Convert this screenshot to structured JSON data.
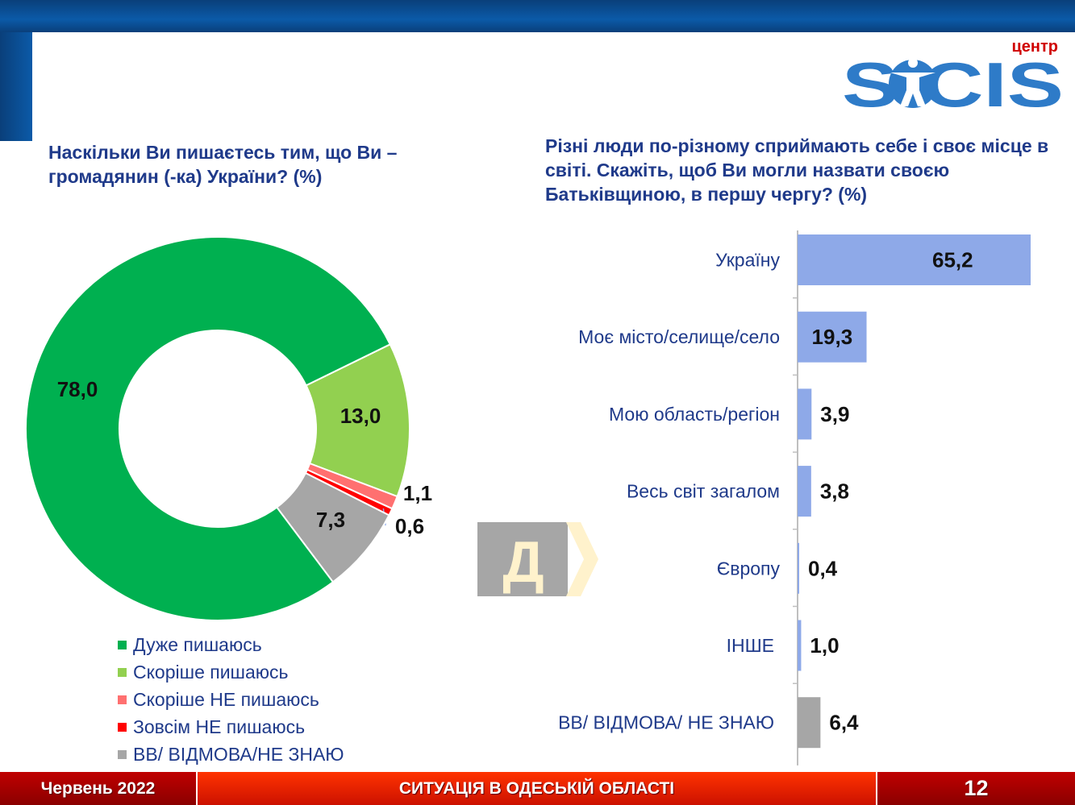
{
  "header": {
    "logo_text": "SOCIS",
    "logo_subtext": "центр"
  },
  "footer": {
    "date": "Червень 2022",
    "title": "СИТУАЦІЯ В ОДЕСЬКІЙ ОБЛАСТІ",
    "page": "12"
  },
  "arrow_label": "Д",
  "colors": {
    "blue_bar": "#8ea9e8",
    "gray_bar": "#a6a6a6",
    "title": "#1f3a8a"
  },
  "chart_data": [
    {
      "type": "pie",
      "subtype": "donut",
      "title": "Наскільки Ви пишаєтесь тим, що Ви – громадянин (-ка) України? (%)",
      "slices": [
        {
          "label": "Скоріше пишаюсь",
          "value": 13.0,
          "display": "13,0",
          "color": "#92d050"
        },
        {
          "label": "Скоріше НЕ пишаюсь",
          "value": 1.1,
          "display": "1,1",
          "color": "#ff7070"
        },
        {
          "label": "Зовсім НЕ пишаюсь",
          "value": 0.6,
          "display": "0,6",
          "color": "#ff0000"
        },
        {
          "label": "ВВ/ ВІДМОВА/НЕ ЗНАЮ",
          "value": 7.3,
          "display": "7,3",
          "color": "#a6a6a6"
        },
        {
          "label": "Дуже пишаюсь",
          "value": 78.0,
          "display": "78,0",
          "color": "#00b050"
        }
      ],
      "legend": [
        "Дуже пишаюсь",
        "Скоріше пишаюсь",
        "Скоріше НЕ пишаюсь",
        "Зовсім НЕ пишаюсь",
        "ВВ/ ВІДМОВА/НЕ ЗНАЮ"
      ],
      "legend_colors": [
        "#00b050",
        "#92d050",
        "#ff7070",
        "#ff0000",
        "#a6a6a6"
      ],
      "legend_placement": "bottom"
    },
    {
      "type": "bar",
      "orientation": "horizontal",
      "title": "Різні люди по-різному сприймають себе і своє місце в світі. Скажіть, щоб Ви могли назвати своєю Батьківщиною, в першу чергу? (%)",
      "categories": [
        "Україну",
        "Моє місто/селище/село",
        "Мою область/регіон",
        "Весь світ загалом",
        "Європу",
        "ІНШЕ",
        "ВВ/ ВІДМОВА/ НЕ ЗНАЮ"
      ],
      "values": [
        65.2,
        19.3,
        3.9,
        3.8,
        0.4,
        1.0,
        6.4
      ],
      "labels": [
        "65,2",
        "19,3",
        "3,9",
        "3,8",
        "0,4",
        "1,0",
        "6,4"
      ],
      "xlim": [
        0,
        65.2
      ]
    }
  ]
}
